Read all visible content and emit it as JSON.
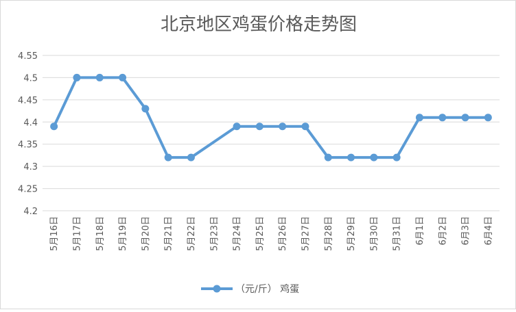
{
  "chart_data": {
    "type": "line",
    "title": "北京地区鸡蛋价格走势图",
    "categories": [
      "5月16日",
      "5月17日",
      "5月18日",
      "5月19日",
      "5月20日",
      "5月21日",
      "5月22日",
      "5月23日",
      "5月24日",
      "5月25日",
      "5月26日",
      "5月27日",
      "5月28日",
      "5月29日",
      "5月30日",
      "5月31日",
      "6月1日",
      "6月2日",
      "6月3日",
      "6月4日"
    ],
    "series": [
      {
        "name": "（元/斤） 鸡蛋",
        "values": [
          4.39,
          4.5,
          4.5,
          4.5,
          4.43,
          4.32,
          4.32,
          null,
          4.39,
          4.39,
          4.39,
          4.39,
          4.32,
          4.32,
          4.32,
          4.32,
          4.41,
          4.41,
          4.41,
          4.41
        ],
        "color": "#5b9bd5"
      }
    ],
    "ylim": [
      4.2,
      4.55
    ],
    "yticks": [
      "4.2",
      "4.25",
      "4.3",
      "4.35",
      "4.4",
      "4.45",
      "4.5",
      "4.55"
    ],
    "grid": true,
    "legend_position": "bottom"
  }
}
